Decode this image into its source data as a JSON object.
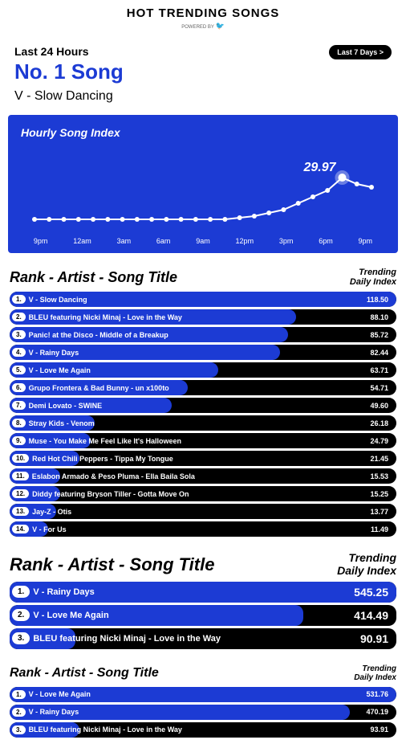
{
  "header": {
    "title": "HOT TRENDING SONGS",
    "powered": "POWERED BY"
  },
  "summary": {
    "period": "Last 24 Hours",
    "last7": "Last 7 Days >",
    "no1_label": "No. 1 Song",
    "top_song": "V - Slow Dancing"
  },
  "chart": {
    "title": "Hourly Song Index",
    "peak_label": "29.97",
    "bg": "#1c3bd4",
    "line_color": "#ffffff",
    "points": [
      4,
      4,
      4,
      4,
      4,
      4,
      4,
      4,
      4,
      4,
      4,
      4,
      4,
      4,
      5,
      6,
      8,
      10,
      14,
      18,
      22,
      29.97,
      26,
      24
    ],
    "ymax": 35,
    "x_labels": [
      "9pm",
      "12am",
      "3am",
      "6am",
      "9am",
      "12pm",
      "3pm",
      "6pm",
      "9pm"
    ]
  },
  "section1": {
    "rank_title": "Rank - Artist - Song Title",
    "trend_title_1": "Trending",
    "trend_title_2": "Daily Index",
    "max": 118.5,
    "rows": [
      {
        "r": "1.",
        "t": "V - Slow Dancing",
        "v": "118.50",
        "p": 100
      },
      {
        "r": "2.",
        "t": "BLEU featuring Nicki Minaj - Love in the Way",
        "v": "88.10",
        "p": 74
      },
      {
        "r": "3.",
        "t": "Panic! at the Disco - Middle of a Breakup",
        "v": "85.72",
        "p": 72
      },
      {
        "r": "4.",
        "t": "V - Rainy Days",
        "v": "82.44",
        "p": 70
      },
      {
        "r": "5.",
        "t": "V - Love Me Again",
        "v": "63.71",
        "p": 54
      },
      {
        "r": "6.",
        "t": "Grupo Frontera & Bad Bunny - un x100to",
        "v": "54.71",
        "p": 46
      },
      {
        "r": "7.",
        "t": "Demi Lovato - SWINE",
        "v": "49.60",
        "p": 42
      },
      {
        "r": "8.",
        "t": "Stray Kids - Venom",
        "v": "26.18",
        "p": 22
      },
      {
        "r": "9.",
        "t": "Muse - You Make Me Feel Like It's Halloween",
        "v": "24.79",
        "p": 21
      },
      {
        "r": "10.",
        "t": "Red Hot Chili Peppers - Tippa My Tongue",
        "v": "21.45",
        "p": 18
      },
      {
        "r": "11.",
        "t": "Eslabon Armado & Peso Pluma - Ella Baila Sola",
        "v": "15.53",
        "p": 13
      },
      {
        "r": "12.",
        "t": "Diddy featuring Bryson Tiller - Gotta Move On",
        "v": "15.25",
        "p": 13
      },
      {
        "r": "13.",
        "t": "Jay-Z - Otis",
        "v": "13.77",
        "p": 12
      },
      {
        "r": "14.",
        "t": "V - For Us",
        "v": "11.49",
        "p": 10
      }
    ]
  },
  "section2": {
    "rank_title": "Rank - Artist - Song Title",
    "trend_title_1": "Trending",
    "trend_title_2": "Daily Index",
    "rows": [
      {
        "r": "1.",
        "t": "V - Rainy Days",
        "v": "545.25",
        "p": 100
      },
      {
        "r": "2.",
        "t": "V - Love Me Again",
        "v": "414.49",
        "p": 76
      },
      {
        "r": "3.",
        "t": "BLEU featuring Nicki Minaj - Love in the Way",
        "v": "90.91",
        "p": 17
      }
    ]
  },
  "section3": {
    "rank_title": "Rank - Artist - Song Title",
    "trend_title_1": "Trending",
    "trend_title_2": "Daily Index",
    "rows": [
      {
        "r": "1.",
        "t": "V - Love Me Again",
        "v": "531.76",
        "p": 100
      },
      {
        "r": "2.",
        "t": "V - Rainy Days",
        "v": "470.19",
        "p": 88
      },
      {
        "r": "3.",
        "t": "BLEU featuring Nicki Minaj - Love in the Way",
        "v": "93.91",
        "p": 18
      }
    ]
  }
}
